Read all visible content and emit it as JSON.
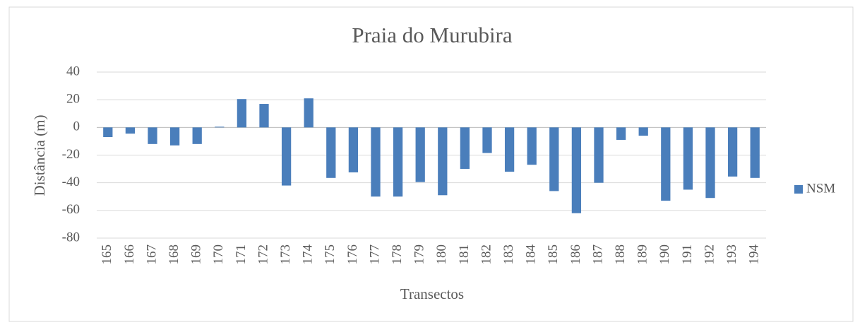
{
  "chart_data": {
    "type": "bar",
    "title": "Praia do Murubira",
    "xlabel": "Transectos",
    "ylabel": "Distância (m)",
    "categories": [
      "165",
      "166",
      "167",
      "168",
      "169",
      "170",
      "171",
      "172",
      "173",
      "174",
      "175",
      "176",
      "177",
      "178",
      "179",
      "180",
      "181",
      "182",
      "183",
      "184",
      "185",
      "186",
      "187",
      "188",
      "189",
      "190",
      "191",
      "192",
      "193",
      "194"
    ],
    "series": [
      {
        "name": "NSM",
        "color": "#4a7ebb",
        "values": [
          -7,
          -4.5,
          -12,
          -13,
          -12,
          0.5,
          20.5,
          17,
          -42,
          21,
          -36.5,
          -32.5,
          -50,
          -50,
          -39.5,
          -49,
          -30,
          -18.5,
          -32,
          -27,
          -46,
          -62,
          -40,
          -9,
          -6,
          -53,
          -45,
          -51,
          -35.5,
          -36.5
        ]
      }
    ],
    "ylim": [
      -80,
      40
    ],
    "yticks": [
      -80,
      -60,
      -40,
      -20,
      0,
      20,
      40
    ],
    "grid": true,
    "legend": "right"
  }
}
